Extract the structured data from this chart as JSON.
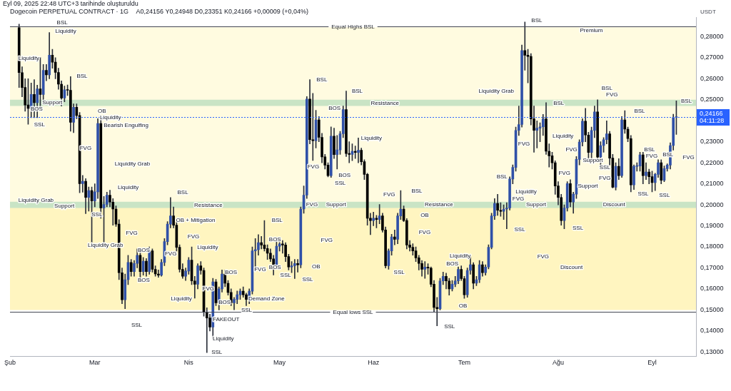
{
  "chart_data": {
    "type": "candlestick",
    "title": "Dogecoin PERPETUAL CONTRACT · 1G",
    "subtitle": "A0,24156 Y0,24948 D0,23351 K0,24166 +0,00009 (+0,04%)",
    "ylabel": "USDT",
    "xlim": [
      "2025-02-01",
      "2025-09-15T12:00"
    ],
    "xticks": [
      {
        "value": "2025-02-01",
        "label": "Şub"
      },
      {
        "value": "2025-03-01",
        "label": "Mar"
      },
      {
        "value": "2025-04-01",
        "label": "Nis"
      },
      {
        "value": "2025-05-01",
        "label": "May"
      },
      {
        "value": "2025-06-01",
        "label": "Haz"
      },
      {
        "value": "2025-07-01",
        "label": "Tem"
      },
      {
        "value": "2025-08-01",
        "label": "Ağu"
      },
      {
        "value": "2025-09-01",
        "label": "Eyl"
      }
    ],
    "ylim": [
      0.128,
      0.2893
    ],
    "yticks": [
      {
        "value": 0.13,
        "label": "0,13000"
      },
      {
        "value": 0.14,
        "label": "0,14000"
      },
      {
        "value": 0.15,
        "label": "0,15000"
      },
      {
        "value": 0.16,
        "label": "0,16000"
      },
      {
        "value": 0.17,
        "label": "0,17000"
      },
      {
        "value": 0.18,
        "label": "0,18000"
      },
      {
        "value": 0.19,
        "label": "0,19000"
      },
      {
        "value": 0.2,
        "label": "0,20000"
      },
      {
        "value": 0.21,
        "label": "0,21000"
      },
      {
        "value": 0.22,
        "label": "0,22000"
      },
      {
        "value": 0.23,
        "label": "0,23000"
      },
      {
        "value": 0.25,
        "label": "0,25000"
      },
      {
        "value": 0.26,
        "label": "0,26000"
      },
      {
        "value": 0.27,
        "label": "0,27000"
      },
      {
        "value": 0.28,
        "label": "0,28000"
      }
    ],
    "bands": [
      {
        "axis": "y",
        "from": 0.2,
        "to": 0.2845,
        "color": "#fffbe0"
      },
      {
        "axis": "y",
        "from": 0.15,
        "to": 0.2,
        "color": "#fff5c0"
      },
      {
        "axis": "y",
        "from": 0.247,
        "to": 0.25,
        "color": "#c9e4c5"
      },
      {
        "axis": "y",
        "from": 0.1985,
        "to": 0.2015,
        "color": "#c9e4c5"
      }
    ],
    "ref_lines": [
      {
        "axis": "y",
        "value": 0.285,
        "label": "Equal Highs BSL",
        "color": "#434651",
        "line_style": "solid"
      },
      {
        "axis": "y",
        "value": 0.1492,
        "label": "Equal lows SSL",
        "color": "#434651",
        "line_style": "solid"
      },
      {
        "axis": "y",
        "value": 0.24166,
        "label": "0,24166\n04:11:28",
        "color": "#2962ff",
        "line_style": "dotted"
      }
    ],
    "annotations": [
      "Eyl 09, 2025 22:48 UTC+3 tarihinde oluşturuldu",
      "BSL",
      "Liquidity",
      "Liquidity",
      "BSL",
      "Support",
      "BOS",
      "SSL",
      "OB",
      "Liquidity",
      "Bearish Engulfing",
      "FVG",
      "Liquidity Grab",
      "Liquidity",
      "Liquidity Grab",
      "Support",
      "SSL",
      "Liquidity Grab",
      "BSL",
      "Resistance",
      "OB + Mitigation",
      "FVG",
      "FVG",
      "BOS",
      "FVG",
      "Liquidity",
      "BOS",
      "Liquidity",
      "SSL",
      "FVG",
      "BOS",
      "BOS",
      "FAKEOUT",
      "Liquidity",
      "SSL",
      "SSL",
      "Demand Zone",
      "FVG",
      "BOS",
      "SSL",
      "BSL",
      "BOS",
      "OB",
      "SSL",
      "FVG",
      "FVG",
      "Support",
      "FVG",
      "BSL",
      "BOS",
      "BOS",
      "SSL",
      "BSL",
      "Liquidity",
      "Resistance",
      "FVG",
      "BSL",
      "Resistance",
      "OB",
      "FVG",
      "SSL",
      "Liquidity",
      "BOS",
      "OB",
      "SSL",
      "BSL",
      "Liquidity Grab",
      "BSL",
      "FVG",
      "Liquidity",
      "BSL",
      "Liquidity",
      "FVG",
      "Support",
      "SSL",
      "FVG",
      "FVG",
      "Discount",
      "SSL",
      "Premium",
      "BSL",
      "FVG",
      "BSL",
      "BSL",
      "BSL",
      "FVG",
      "BSL",
      "FVG",
      "FVG",
      "Support",
      "SSL",
      "FVG",
      "Support",
      "SSL",
      "SSL",
      "Discount"
    ],
    "x": [
      "2025-02-04",
      "2025-02-05",
      "2025-02-06",
      "2025-02-07",
      "2025-02-08",
      "2025-02-09",
      "2025-02-10",
      "2025-02-11",
      "2025-02-12",
      "2025-02-13",
      "2025-02-14",
      "2025-02-15",
      "2025-02-16",
      "2025-02-17",
      "2025-02-18",
      "2025-02-19",
      "2025-02-20",
      "2025-02-21",
      "2025-02-22",
      "2025-02-23",
      "2025-02-24",
      "2025-02-25",
      "2025-02-26",
      "2025-02-27",
      "2025-02-28",
      "2025-03-01",
      "2025-03-02",
      "2025-03-03",
      "2025-03-04",
      "2025-03-05",
      "2025-03-06",
      "2025-03-07",
      "2025-03-08",
      "2025-03-09",
      "2025-03-10",
      "2025-03-11",
      "2025-03-12",
      "2025-03-13",
      "2025-03-14",
      "2025-03-15",
      "2025-03-16",
      "2025-03-17",
      "2025-03-18",
      "2025-03-19",
      "2025-03-20",
      "2025-03-21",
      "2025-03-22",
      "2025-03-23",
      "2025-03-24",
      "2025-03-25",
      "2025-03-26",
      "2025-03-27",
      "2025-03-28",
      "2025-03-29",
      "2025-03-30",
      "2025-03-31",
      "2025-04-01",
      "2025-04-02",
      "2025-04-03",
      "2025-04-04",
      "2025-04-05",
      "2025-04-06",
      "2025-04-07",
      "2025-04-08",
      "2025-04-09",
      "2025-04-10",
      "2025-04-11",
      "2025-04-12",
      "2025-04-13",
      "2025-04-14",
      "2025-04-15",
      "2025-04-16",
      "2025-04-17",
      "2025-04-18",
      "2025-04-19",
      "2025-04-20",
      "2025-04-21",
      "2025-04-22",
      "2025-04-23",
      "2025-04-24",
      "2025-04-25",
      "2025-04-26",
      "2025-04-27",
      "2025-04-28",
      "2025-04-29",
      "2025-04-30",
      "2025-05-01",
      "2025-05-02",
      "2025-05-03",
      "2025-05-04",
      "2025-05-05",
      "2025-05-06",
      "2025-05-07",
      "2025-05-08",
      "2025-05-09",
      "2025-05-10",
      "2025-05-11",
      "2025-05-12",
      "2025-05-13",
      "2025-05-14",
      "2025-05-15",
      "2025-05-16",
      "2025-05-17",
      "2025-05-18",
      "2025-05-19",
      "2025-05-20",
      "2025-05-21",
      "2025-05-22",
      "2025-05-23",
      "2025-05-24",
      "2025-05-25",
      "2025-05-26",
      "2025-05-27",
      "2025-05-28",
      "2025-05-29",
      "2025-05-30",
      "2025-05-31",
      "2025-06-01",
      "2025-06-02",
      "2025-06-03",
      "2025-06-04",
      "2025-06-05",
      "2025-06-06",
      "2025-06-07",
      "2025-06-08",
      "2025-06-09",
      "2025-06-10",
      "2025-06-11",
      "2025-06-12",
      "2025-06-13",
      "2025-06-14",
      "2025-06-15",
      "2025-06-16",
      "2025-06-17",
      "2025-06-18",
      "2025-06-19",
      "2025-06-20",
      "2025-06-21",
      "2025-06-22",
      "2025-06-23",
      "2025-06-24",
      "2025-06-25",
      "2025-06-26",
      "2025-06-27",
      "2025-06-28",
      "2025-06-29",
      "2025-06-30",
      "2025-07-01",
      "2025-07-02",
      "2025-07-03",
      "2025-07-04",
      "2025-07-05",
      "2025-07-06",
      "2025-07-07",
      "2025-07-08",
      "2025-07-09",
      "2025-07-10",
      "2025-07-11",
      "2025-07-12",
      "2025-07-13",
      "2025-07-14",
      "2025-07-15",
      "2025-07-16",
      "2025-07-17",
      "2025-07-18",
      "2025-07-19",
      "2025-07-20",
      "2025-07-21",
      "2025-07-22",
      "2025-07-23",
      "2025-07-24",
      "2025-07-25",
      "2025-07-26",
      "2025-07-27",
      "2025-07-28",
      "2025-07-29",
      "2025-07-30",
      "2025-07-31",
      "2025-08-01",
      "2025-08-02",
      "2025-08-03",
      "2025-08-04",
      "2025-08-05",
      "2025-08-06",
      "2025-08-07",
      "2025-08-08",
      "2025-08-09",
      "2025-08-10",
      "2025-08-11",
      "2025-08-12",
      "2025-08-13",
      "2025-08-14",
      "2025-08-15",
      "2025-08-16",
      "2025-08-17",
      "2025-08-18",
      "2025-08-19",
      "2025-08-20",
      "2025-08-21",
      "2025-08-22",
      "2025-08-23",
      "2025-08-24",
      "2025-08-25",
      "2025-08-26",
      "2025-08-27",
      "2025-08-28",
      "2025-08-29",
      "2025-08-30",
      "2025-08-31",
      "2025-09-01",
      "2025-09-02",
      "2025-09-03",
      "2025-09-04",
      "2025-09-05",
      "2025-09-06",
      "2025-09-07",
      "2025-09-08",
      "2025-09-09"
    ],
    "ohlc": [
      [
        0.2843,
        0.286,
        0.2558,
        0.2629
      ],
      [
        0.2629,
        0.2657,
        0.2514,
        0.2558
      ],
      [
        0.2558,
        0.26,
        0.2445,
        0.2475
      ],
      [
        0.2475,
        0.26,
        0.2383,
        0.2459
      ],
      [
        0.2459,
        0.258,
        0.2415,
        0.2525
      ],
      [
        0.2525,
        0.2596,
        0.2415,
        0.2486
      ],
      [
        0.2486,
        0.2569,
        0.2415,
        0.2552
      ],
      [
        0.2552,
        0.2701,
        0.2459,
        0.2525
      ],
      [
        0.2525,
        0.2668,
        0.25,
        0.264
      ],
      [
        0.264,
        0.2668,
        0.259,
        0.2618
      ],
      [
        0.2618,
        0.282,
        0.26,
        0.2712
      ],
      [
        0.2712,
        0.274,
        0.265,
        0.2679
      ],
      [
        0.2679,
        0.27,
        0.26,
        0.263
      ],
      [
        0.263,
        0.265,
        0.255,
        0.2574
      ],
      [
        0.2574,
        0.259,
        0.247,
        0.2508
      ],
      [
        0.2508,
        0.2565,
        0.249,
        0.2547
      ],
      [
        0.2547,
        0.257,
        0.252,
        0.2545
      ],
      [
        0.2545,
        0.261,
        0.235,
        0.2393
      ],
      [
        0.2393,
        0.248,
        0.2343,
        0.2464
      ],
      [
        0.2464,
        0.248,
        0.241,
        0.2425
      ],
      [
        0.2425,
        0.244,
        0.2057,
        0.2101
      ],
      [
        0.2101,
        0.214,
        0.206,
        0.2112
      ],
      [
        0.2112,
        0.2125,
        0.1958,
        0.2035
      ],
      [
        0.2035,
        0.2085,
        0.197,
        0.2068
      ],
      [
        0.2068,
        0.2085,
        0.182,
        0.2018
      ],
      [
        0.2018,
        0.21,
        0.199,
        0.2062
      ],
      [
        0.2062,
        0.241,
        0.203,
        0.2387
      ],
      [
        0.2387,
        0.241,
        0.1936,
        0.1985
      ],
      [
        0.1985,
        0.204,
        0.181,
        0.2002
      ],
      [
        0.2002,
        0.206,
        0.199,
        0.2046
      ],
      [
        0.2046,
        0.207,
        0.199,
        0.2013
      ],
      [
        0.2013,
        0.203,
        0.1903,
        0.198
      ],
      [
        0.198,
        0.1995,
        0.1897,
        0.1908
      ],
      [
        0.1908,
        0.193,
        0.1644,
        0.1677
      ],
      [
        0.1677,
        0.17,
        0.153,
        0.1548
      ],
      [
        0.1548,
        0.1671,
        0.1506,
        0.1644
      ],
      [
        0.1644,
        0.176,
        0.162,
        0.1726
      ],
      [
        0.1726,
        0.174,
        0.166,
        0.1682
      ],
      [
        0.1682,
        0.1735,
        0.166,
        0.1721
      ],
      [
        0.1721,
        0.179,
        0.17,
        0.176
      ],
      [
        0.176,
        0.1781,
        0.165,
        0.1682
      ],
      [
        0.1682,
        0.175,
        0.1665,
        0.1732
      ],
      [
        0.1732,
        0.1745,
        0.166,
        0.1682
      ],
      [
        0.1682,
        0.18,
        0.167,
        0.1781
      ],
      [
        0.1781,
        0.179,
        0.168,
        0.1693
      ],
      [
        0.1693,
        0.171,
        0.166,
        0.1671
      ],
      [
        0.1671,
        0.169,
        0.1655,
        0.1665
      ],
      [
        0.1665,
        0.174,
        0.166,
        0.1726
      ],
      [
        0.1726,
        0.184,
        0.171,
        0.1825
      ],
      [
        0.1825,
        0.192,
        0.181,
        0.1908
      ],
      [
        0.1908,
        0.2035,
        0.189,
        0.1947
      ],
      [
        0.1947,
        0.199,
        0.189,
        0.1903
      ],
      [
        0.1903,
        0.192,
        0.178,
        0.1798
      ],
      [
        0.1798,
        0.181,
        0.168,
        0.1693
      ],
      [
        0.1693,
        0.172,
        0.165,
        0.166
      ],
      [
        0.166,
        0.17,
        0.164,
        0.1685
      ],
      [
        0.1685,
        0.175,
        0.167,
        0.1737
      ],
      [
        0.1737,
        0.18,
        0.162,
        0.1638
      ],
      [
        0.1638,
        0.166,
        0.1556,
        0.1622
      ],
      [
        0.1622,
        0.172,
        0.16,
        0.171
      ],
      [
        0.171,
        0.173,
        0.167,
        0.1688
      ],
      [
        0.1688,
        0.17,
        0.147,
        0.149
      ],
      [
        0.149,
        0.151,
        0.1297,
        0.1462
      ],
      [
        0.1462,
        0.148,
        0.14,
        0.1418
      ],
      [
        0.1418,
        0.165,
        0.1363,
        0.1633
      ],
      [
        0.1633,
        0.1645,
        0.152,
        0.1534
      ],
      [
        0.1534,
        0.161,
        0.15,
        0.16
      ],
      [
        0.16,
        0.169,
        0.1585,
        0.1671
      ],
      [
        0.1671,
        0.169,
        0.161,
        0.1627
      ],
      [
        0.1627,
        0.164,
        0.157,
        0.1583
      ],
      [
        0.1583,
        0.16,
        0.152,
        0.1534
      ],
      [
        0.1534,
        0.156,
        0.1501,
        0.155
      ],
      [
        0.155,
        0.159,
        0.153,
        0.1572
      ],
      [
        0.1572,
        0.16,
        0.155,
        0.1589
      ],
      [
        0.1589,
        0.161,
        0.156,
        0.1572
      ],
      [
        0.1572,
        0.158,
        0.152,
        0.155
      ],
      [
        0.155,
        0.16,
        0.153,
        0.1589
      ],
      [
        0.1589,
        0.18,
        0.1575,
        0.1781
      ],
      [
        0.1781,
        0.184,
        0.169,
        0.1787
      ],
      [
        0.1787,
        0.1858,
        0.176,
        0.182
      ],
      [
        0.182,
        0.185,
        0.179,
        0.1809
      ],
      [
        0.1809,
        0.1925,
        0.178,
        0.1792
      ],
      [
        0.1792,
        0.181,
        0.174,
        0.177
      ],
      [
        0.177,
        0.179,
        0.173,
        0.1743
      ],
      [
        0.1743,
        0.176,
        0.1666,
        0.1715
      ],
      [
        0.1715,
        0.183,
        0.17,
        0.1803
      ],
      [
        0.1803,
        0.1835,
        0.178,
        0.1814
      ],
      [
        0.1814,
        0.183,
        0.177,
        0.1809
      ],
      [
        0.1809,
        0.182,
        0.173,
        0.1754
      ],
      [
        0.1754,
        0.1765,
        0.169,
        0.1704
      ],
      [
        0.1704,
        0.173,
        0.1677,
        0.171
      ],
      [
        0.171,
        0.174,
        0.1649,
        0.1721
      ],
      [
        0.1721,
        0.174,
        0.168,
        0.1715
      ],
      [
        0.1715,
        0.199,
        0.17,
        0.198
      ],
      [
        0.198,
        0.209,
        0.196,
        0.2046
      ],
      [
        0.2046,
        0.2515,
        0.203,
        0.2503
      ],
      [
        0.2503,
        0.2596,
        0.229,
        0.231
      ],
      [
        0.231,
        0.253,
        0.2211,
        0.2305
      ],
      [
        0.2305,
        0.245,
        0.227,
        0.2404
      ],
      [
        0.2404,
        0.242,
        0.23,
        0.2321
      ],
      [
        0.2321,
        0.234,
        0.22,
        0.2228
      ],
      [
        0.2228,
        0.224,
        0.217,
        0.2189
      ],
      [
        0.2189,
        0.22,
        0.2133,
        0.2139
      ],
      [
        0.2139,
        0.2371,
        0.213,
        0.2327
      ],
      [
        0.2327,
        0.2365,
        0.222,
        0.2239
      ],
      [
        0.2239,
        0.233,
        0.217,
        0.2261
      ],
      [
        0.2261,
        0.235,
        0.224,
        0.2338
      ],
      [
        0.2338,
        0.247,
        0.232,
        0.2453
      ],
      [
        0.2453,
        0.2541,
        0.223,
        0.2244
      ],
      [
        0.2244,
        0.23,
        0.22,
        0.224
      ],
      [
        0.224,
        0.229,
        0.221,
        0.2255
      ],
      [
        0.2255,
        0.228,
        0.222,
        0.2249
      ],
      [
        0.2249,
        0.2318,
        0.22,
        0.226
      ],
      [
        0.226,
        0.227,
        0.219,
        0.2205
      ],
      [
        0.2205,
        0.2215,
        0.212,
        0.2145
      ],
      [
        0.2145,
        0.215,
        0.1903,
        0.1936
      ],
      [
        0.1936,
        0.196,
        0.1858,
        0.1925
      ],
      [
        0.1925,
        0.1965,
        0.19,
        0.1936
      ],
      [
        0.1936,
        0.195,
        0.189,
        0.193
      ],
      [
        0.193,
        0.2002,
        0.191,
        0.1947
      ],
      [
        0.1947,
        0.196,
        0.187,
        0.188
      ],
      [
        0.188,
        0.1895,
        0.1699,
        0.171
      ],
      [
        0.171,
        0.179,
        0.1693,
        0.1781
      ],
      [
        0.1781,
        0.186,
        0.176,
        0.1847
      ],
      [
        0.1847,
        0.188,
        0.181,
        0.1836
      ],
      [
        0.1836,
        0.196,
        0.1815,
        0.1947
      ],
      [
        0.1947,
        0.2068,
        0.193,
        0.198
      ],
      [
        0.198,
        0.1995,
        0.192,
        0.1925
      ],
      [
        0.1925,
        0.1935,
        0.179,
        0.1809
      ],
      [
        0.1809,
        0.183,
        0.178,
        0.1798
      ],
      [
        0.1798,
        0.1815,
        0.176,
        0.1781
      ],
      [
        0.1781,
        0.18,
        0.173,
        0.1748
      ],
      [
        0.1748,
        0.176,
        0.169,
        0.1721
      ],
      [
        0.1721,
        0.1735,
        0.166,
        0.1693
      ],
      [
        0.1693,
        0.173,
        0.165,
        0.1704
      ],
      [
        0.1704,
        0.172,
        0.167,
        0.1699
      ],
      [
        0.1699,
        0.1705,
        0.161,
        0.1622
      ],
      [
        0.1622,
        0.164,
        0.149,
        0.1512
      ],
      [
        0.1512,
        0.156,
        0.1424,
        0.1506
      ],
      [
        0.1506,
        0.165,
        0.15,
        0.1638
      ],
      [
        0.1638,
        0.168,
        0.162,
        0.166
      ],
      [
        0.166,
        0.1675,
        0.16,
        0.1638
      ],
      [
        0.1638,
        0.165,
        0.157,
        0.16
      ],
      [
        0.16,
        0.164,
        0.159,
        0.1622
      ],
      [
        0.1622,
        0.166,
        0.161,
        0.1638
      ],
      [
        0.1638,
        0.1705,
        0.1625,
        0.1693
      ],
      [
        0.1693,
        0.171,
        0.164,
        0.1649
      ],
      [
        0.1649,
        0.166,
        0.1555,
        0.1572
      ],
      [
        0.1572,
        0.17,
        0.156,
        0.1688
      ],
      [
        0.1688,
        0.1754,
        0.167,
        0.1715
      ],
      [
        0.1715,
        0.1725,
        0.16,
        0.1627
      ],
      [
        0.1627,
        0.166,
        0.1615,
        0.1644
      ],
      [
        0.1644,
        0.1735,
        0.163,
        0.1715
      ],
      [
        0.1715,
        0.173,
        0.166,
        0.1677
      ],
      [
        0.1677,
        0.1715,
        0.1665,
        0.1704
      ],
      [
        0.1704,
        0.181,
        0.1695,
        0.1798
      ],
      [
        0.1798,
        0.196,
        0.179,
        0.1947
      ],
      [
        0.1947,
        0.203,
        0.193,
        0.2007
      ],
      [
        0.2007,
        0.205,
        0.195,
        0.1974
      ],
      [
        0.1974,
        0.201,
        0.1945,
        0.1969
      ],
      [
        0.1969,
        0.2,
        0.193,
        0.198
      ],
      [
        0.198,
        0.201,
        0.1886,
        0.1985
      ],
      [
        0.1985,
        0.2133,
        0.1975,
        0.2123
      ],
      [
        0.2123,
        0.219,
        0.21,
        0.2178
      ],
      [
        0.2178,
        0.237,
        0.216,
        0.2354
      ],
      [
        0.2354,
        0.247,
        0.233,
        0.2382
      ],
      [
        0.2382,
        0.276,
        0.237,
        0.2734
      ],
      [
        0.2734,
        0.287,
        0.264,
        0.2712
      ],
      [
        0.2712,
        0.274,
        0.258,
        0.2706
      ],
      [
        0.2706,
        0.272,
        0.238,
        0.2409
      ],
      [
        0.2409,
        0.247,
        0.225,
        0.2354
      ],
      [
        0.2354,
        0.24,
        0.227,
        0.2365
      ],
      [
        0.2365,
        0.239,
        0.23,
        0.2371
      ],
      [
        0.2371,
        0.243,
        0.233,
        0.2409
      ],
      [
        0.2409,
        0.2486,
        0.224,
        0.2255
      ],
      [
        0.2255,
        0.229,
        0.218,
        0.2233
      ],
      [
        0.2233,
        0.225,
        0.217,
        0.22
      ],
      [
        0.22,
        0.221,
        0.205,
        0.209
      ],
      [
        0.209,
        0.211,
        0.2,
        0.2035
      ],
      [
        0.2035,
        0.205,
        0.1903,
        0.1925
      ],
      [
        0.1925,
        0.2,
        0.1886,
        0.1985
      ],
      [
        0.1985,
        0.211,
        0.197,
        0.2101
      ],
      [
        0.2101,
        0.212,
        0.199,
        0.2013
      ],
      [
        0.2013,
        0.206,
        0.196,
        0.2051
      ],
      [
        0.2051,
        0.223,
        0.203,
        0.2216
      ],
      [
        0.2216,
        0.231,
        0.219,
        0.2299
      ],
      [
        0.2299,
        0.241,
        0.228,
        0.2398
      ],
      [
        0.2398,
        0.2459,
        0.23,
        0.2332
      ],
      [
        0.2332,
        0.2345,
        0.221,
        0.2249
      ],
      [
        0.2249,
        0.237,
        0.222,
        0.2354
      ],
      [
        0.2354,
        0.247,
        0.232,
        0.2442
      ],
      [
        0.2442,
        0.25,
        0.221,
        0.2227
      ],
      [
        0.2227,
        0.23,
        0.218,
        0.2282
      ],
      [
        0.2282,
        0.232,
        0.225,
        0.231
      ],
      [
        0.231,
        0.24,
        0.229,
        0.2338
      ],
      [
        0.2338,
        0.235,
        0.219,
        0.2222
      ],
      [
        0.2222,
        0.224,
        0.208,
        0.2084
      ],
      [
        0.2084,
        0.22,
        0.207,
        0.2183
      ],
      [
        0.2183,
        0.222,
        0.212,
        0.2139
      ],
      [
        0.2139,
        0.242,
        0.213,
        0.2404
      ],
      [
        0.2404,
        0.2448,
        0.234,
        0.236
      ],
      [
        0.236,
        0.237,
        0.23,
        0.2315
      ],
      [
        0.2315,
        0.233,
        0.2062,
        0.2095
      ],
      [
        0.2095,
        0.219,
        0.2073,
        0.2183
      ],
      [
        0.2183,
        0.22,
        0.216,
        0.2185
      ],
      [
        0.2185,
        0.225,
        0.216,
        0.2238
      ],
      [
        0.2238,
        0.225,
        0.21,
        0.2139
      ],
      [
        0.2139,
        0.22,
        0.212,
        0.2156
      ],
      [
        0.2156,
        0.217,
        0.21,
        0.2134
      ],
      [
        0.2134,
        0.216,
        0.2062,
        0.2106
      ],
      [
        0.2106,
        0.215,
        0.2068,
        0.2145
      ],
      [
        0.2145,
        0.2215,
        0.213,
        0.22
      ],
      [
        0.22,
        0.2215,
        0.21,
        0.2117
      ],
      [
        0.2117,
        0.2185,
        0.211,
        0.2172
      ],
      [
        0.2172,
        0.2195,
        0.216,
        0.2189
      ],
      [
        0.2189,
        0.2295,
        0.217,
        0.2282
      ],
      [
        0.2282,
        0.2431,
        0.226,
        0.2415
      ],
      [
        0.24156,
        0.24948,
        0.23351,
        0.24166
      ]
    ]
  }
}
